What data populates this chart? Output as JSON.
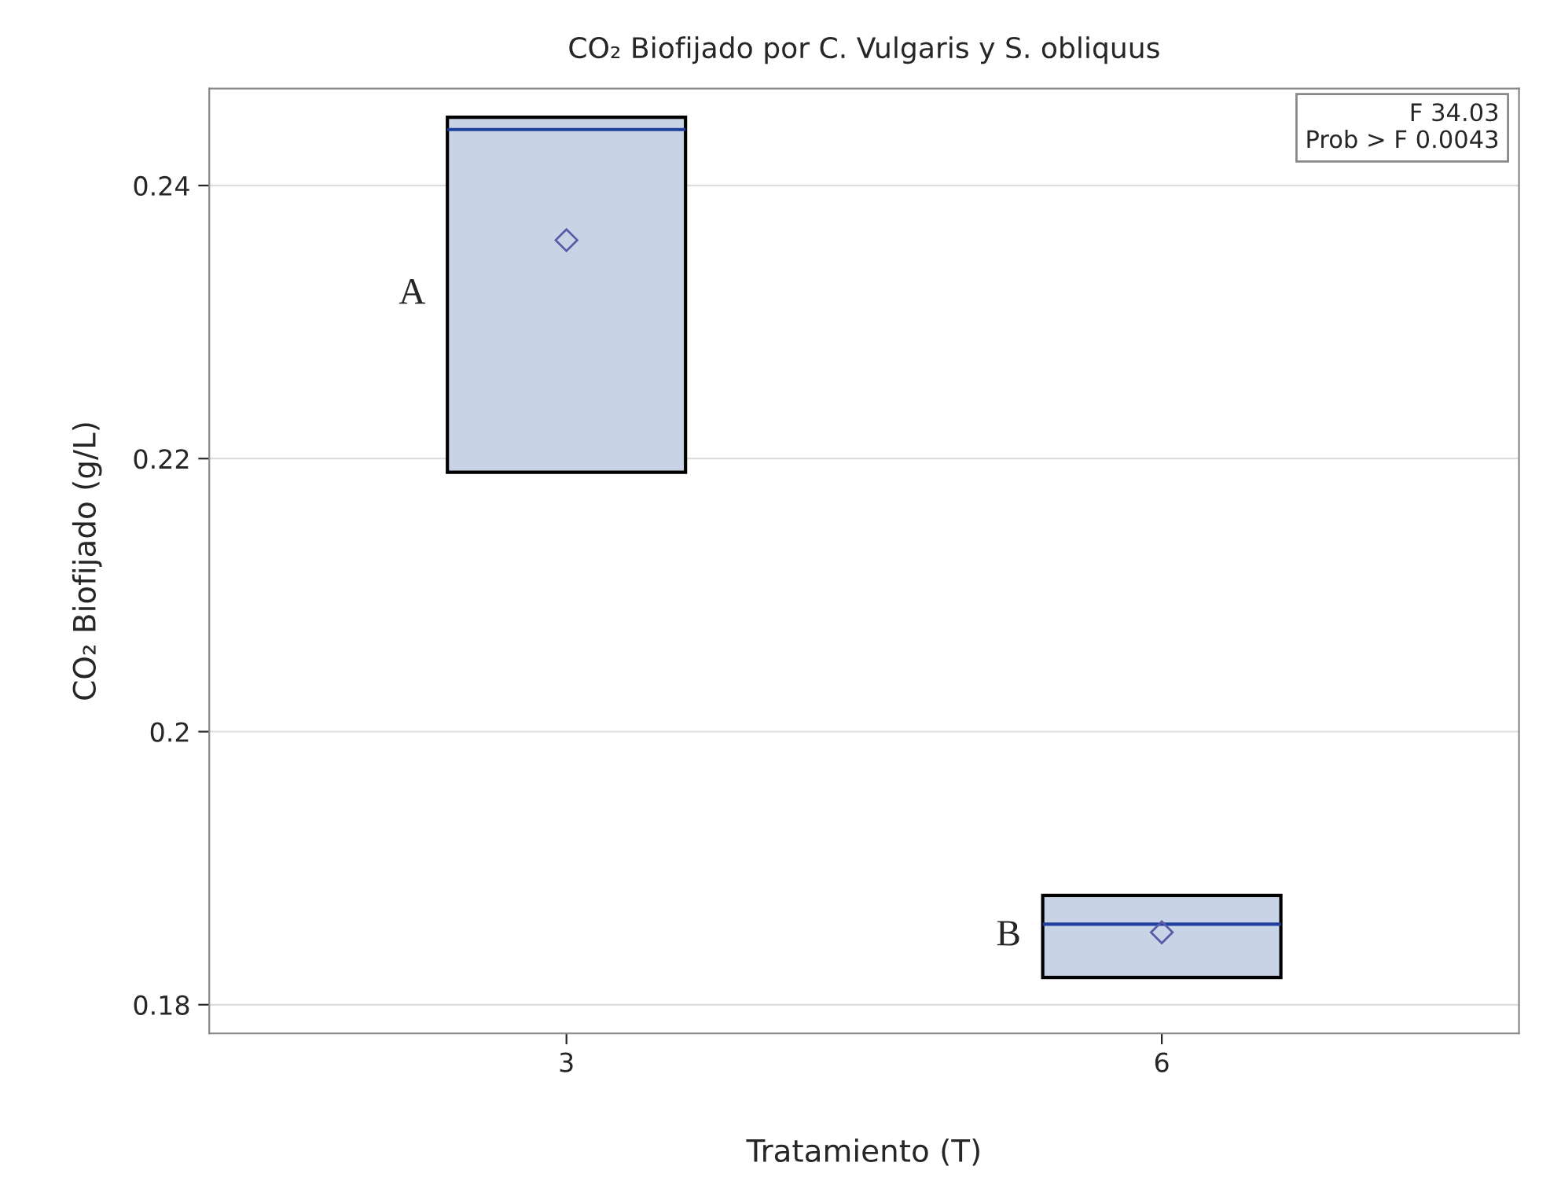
{
  "chart_data": {
    "type": "box",
    "title": "CO₂ Biofijado por C. Vulgaris y S. obliquus",
    "xlabel": "Tratamiento (T)",
    "ylabel": "CO₂ Biofijado (g/L)",
    "categories": [
      "3",
      "6"
    ],
    "boxes": [
      {
        "low": 0.219,
        "q1": 0.219,
        "median": 0.2441,
        "q3": 0.245,
        "high": 0.245,
        "mean": 0.236
      },
      {
        "low": 0.182,
        "q1": 0.182,
        "median": 0.1859,
        "q3": 0.188,
        "high": 0.188,
        "mean": 0.1853
      }
    ],
    "color": "#c8d4e6",
    "ylim": [
      0.1779,
      0.2471
    ],
    "yticks": [
      0.18,
      0.2,
      0.22,
      0.24
    ],
    "grid": "y",
    "legend": false,
    "annotations": [
      "A",
      "B",
      "F 34.03",
      "Prob > F 0.0043"
    ]
  }
}
